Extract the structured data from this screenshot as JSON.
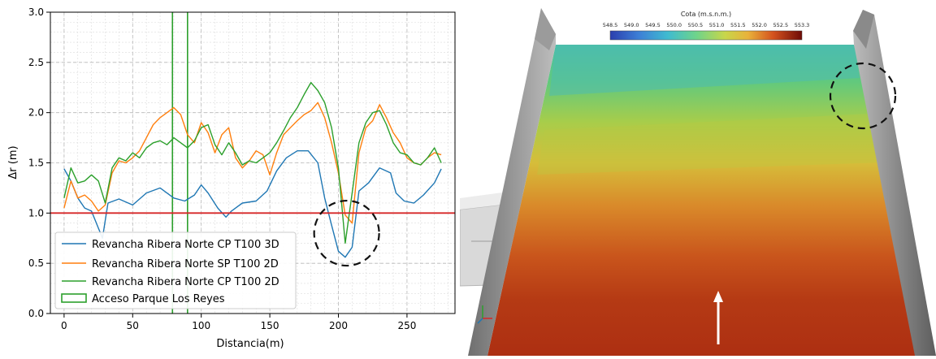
{
  "chart_data": {
    "type": "line",
    "xlabel": "Distancia(m)",
    "ylabel": "Δr (m)",
    "xlim": [
      -10,
      285
    ],
    "ylim": [
      0.0,
      3.0
    ],
    "xticks": [
      0,
      50,
      100,
      150,
      200,
      250
    ],
    "yticks": [
      0.0,
      0.5,
      1.0,
      1.5,
      2.0,
      2.5,
      3.0
    ],
    "grid": "major and minor, dashed",
    "legend_position": "bottom-left",
    "threshold": {
      "y": 1.0,
      "color": "#d62728"
    },
    "access_band": {
      "name": "Acceso Parque Los Reyes",
      "x": [
        79,
        90
      ],
      "color": "#2ca02c"
    },
    "annotation": {
      "shape": "dashed circle",
      "x": 206,
      "y": 0.8
    },
    "series": [
      {
        "name": "Revancha Ribera Norte CP T100 3D",
        "color": "#1f77b4",
        "x": [
          0,
          5,
          10,
          15,
          20,
          25,
          28,
          32,
          40,
          50,
          60,
          70,
          80,
          88,
          95,
          100,
          105,
          112,
          118,
          122,
          130,
          140,
          148,
          155,
          162,
          170,
          178,
          185,
          190,
          195,
          200,
          205,
          210,
          215,
          222,
          230,
          238,
          242,
          248,
          255,
          262,
          270,
          275
        ],
        "y": [
          1.44,
          1.32,
          1.15,
          1.05,
          1.02,
          0.85,
          0.75,
          1.1,
          1.14,
          1.08,
          1.2,
          1.25,
          1.15,
          1.12,
          1.18,
          1.28,
          1.2,
          1.05,
          0.96,
          1.02,
          1.1,
          1.12,
          1.22,
          1.42,
          1.55,
          1.62,
          1.62,
          1.5,
          1.15,
          0.88,
          0.62,
          0.56,
          0.66,
          1.22,
          1.3,
          1.45,
          1.4,
          1.2,
          1.12,
          1.1,
          1.18,
          1.3,
          1.44
        ]
      },
      {
        "name": "Revancha Ribera Norte SP T100 2D",
        "color": "#ff7f0e",
        "x": [
          0,
          5,
          10,
          15,
          20,
          25,
          30,
          35,
          40,
          45,
          50,
          55,
          60,
          65,
          70,
          75,
          80,
          85,
          90,
          95,
          100,
          105,
          110,
          115,
          120,
          125,
          130,
          135,
          140,
          145,
          150,
          155,
          160,
          165,
          170,
          175,
          180,
          185,
          190,
          195,
          200,
          205,
          210,
          215,
          220,
          225,
          230,
          235,
          240,
          245,
          250,
          255,
          260,
          265,
          270,
          275
        ],
        "y": [
          1.05,
          1.32,
          1.15,
          1.18,
          1.12,
          1.02,
          1.08,
          1.4,
          1.52,
          1.5,
          1.55,
          1.62,
          1.75,
          1.88,
          1.95,
          2.0,
          2.05,
          1.98,
          1.78,
          1.7,
          1.9,
          1.8,
          1.6,
          1.78,
          1.85,
          1.55,
          1.45,
          1.52,
          1.62,
          1.58,
          1.38,
          1.6,
          1.78,
          1.85,
          1.92,
          1.98,
          2.02,
          2.1,
          1.95,
          1.7,
          1.4,
          0.98,
          0.9,
          1.6,
          1.85,
          1.92,
          2.08,
          1.95,
          1.8,
          1.7,
          1.55,
          1.5,
          1.48,
          1.55,
          1.6,
          1.58
        ]
      },
      {
        "name": "Revancha Ribera Norte CP T100 2D",
        "color": "#2ca02c",
        "x": [
          0,
          5,
          10,
          15,
          20,
          25,
          30,
          35,
          40,
          45,
          50,
          55,
          60,
          65,
          70,
          75,
          80,
          85,
          90,
          95,
          100,
          105,
          110,
          115,
          120,
          125,
          130,
          135,
          140,
          145,
          150,
          155,
          160,
          165,
          170,
          175,
          180,
          185,
          190,
          195,
          200,
          205,
          210,
          215,
          220,
          225,
          230,
          235,
          240,
          245,
          250,
          255,
          260,
          265,
          270,
          275
        ],
        "y": [
          1.15,
          1.45,
          1.3,
          1.32,
          1.38,
          1.32,
          1.1,
          1.45,
          1.55,
          1.52,
          1.6,
          1.55,
          1.65,
          1.7,
          1.72,
          1.68,
          1.75,
          1.7,
          1.65,
          1.72,
          1.85,
          1.88,
          1.68,
          1.58,
          1.7,
          1.6,
          1.48,
          1.52,
          1.5,
          1.55,
          1.6,
          1.7,
          1.82,
          1.95,
          2.05,
          2.18,
          2.3,
          2.22,
          2.1,
          1.85,
          1.45,
          0.7,
          1.2,
          1.7,
          1.9,
          2.0,
          2.02,
          1.88,
          1.7,
          1.6,
          1.58,
          1.5,
          1.48,
          1.55,
          1.65,
          1.5
        ]
      }
    ]
  },
  "render_view": {
    "colorbar_title": "Cota (m.s.n.m.)",
    "colorbar_ticks": [
      "548.5",
      "549.0",
      "549.5",
      "550.0",
      "550.5",
      "551.0",
      "551.5",
      "552.0",
      "552.5",
      "553.3"
    ],
    "colors": [
      "#2b3fae",
      "#3d9fd6",
      "#4cc7a7",
      "#9fd64f",
      "#e9c43a",
      "#d4651e",
      "#b22a10",
      "#6e0b07"
    ]
  }
}
